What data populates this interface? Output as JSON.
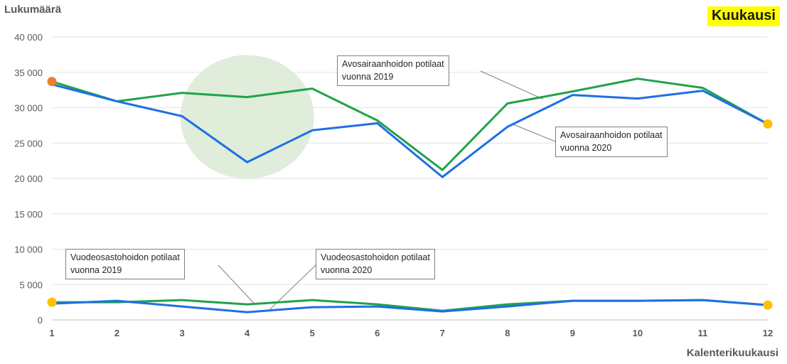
{
  "chart_data": {
    "type": "line",
    "badge": "Kuukausi",
    "ylabel": "Lukumäärä",
    "xlabel": "Kalenterikuukausi",
    "ylim": [
      0,
      40000
    ],
    "y_ticks": [
      "0",
      "5 000",
      "10 000",
      "15 000",
      "20 000",
      "25 000",
      "30 000",
      "35 000",
      "40 000"
    ],
    "categories": [
      "1",
      "2",
      "3",
      "4",
      "5",
      "6",
      "7",
      "8",
      "9",
      "10",
      "11",
      "12"
    ],
    "grid": true,
    "highlight": {
      "x": 4,
      "y": 28700,
      "note": "green shaded circle"
    },
    "series": [
      {
        "name": "Avosairaanhoidon potilaat vuonna 2019",
        "color": "#1fa34a",
        "values": [
          33700,
          30900,
          32100,
          31500,
          32700,
          28200,
          21200,
          30600,
          32300,
          34100,
          32800,
          27700
        ]
      },
      {
        "name": "Avosairaanhoidon potilaat vuonna 2020",
        "color": "#1f6fe5",
        "values": [
          33300,
          30900,
          28800,
          22300,
          26800,
          27800,
          20200,
          27300,
          31800,
          31300,
          32400,
          27700
        ]
      },
      {
        "name": "Vuodeosastohoidon potilaat vuonna 2019",
        "color": "#1fa34a",
        "values": [
          2500,
          2500,
          2800,
          2200,
          2800,
          2200,
          1300,
          2200,
          2700,
          2700,
          2800,
          2100
        ]
      },
      {
        "name": "Vuodeosastohoidon potilaat vuonna 2020",
        "color": "#1f6fe5",
        "values": [
          2300,
          2700,
          1900,
          1100,
          1800,
          1900,
          1200,
          1900,
          2700,
          2700,
          2800,
          2100
        ]
      }
    ],
    "markers": [
      {
        "x": 1,
        "y": 33700,
        "color": "#ed7d31"
      },
      {
        "x": 12,
        "y": 27700,
        "color": "#ffc000"
      },
      {
        "x": 1,
        "y": 2500,
        "color": "#ffc000"
      },
      {
        "x": 12,
        "y": 2100,
        "color": "#ffc000"
      }
    ],
    "annotations": [
      {
        "line1": "Avosairaanhoidon potilaat",
        "line2": "vuonna 2019"
      },
      {
        "line1": "Avosairaanhoidon potilaat",
        "line2": "vuonna 2020"
      },
      {
        "line1": "Vuodeosastohoidon potilaat",
        "line2": "vuonna 2019"
      },
      {
        "line1": "Vuodeosastohoidon potilaat",
        "line2": "vuonna 2020"
      }
    ]
  }
}
